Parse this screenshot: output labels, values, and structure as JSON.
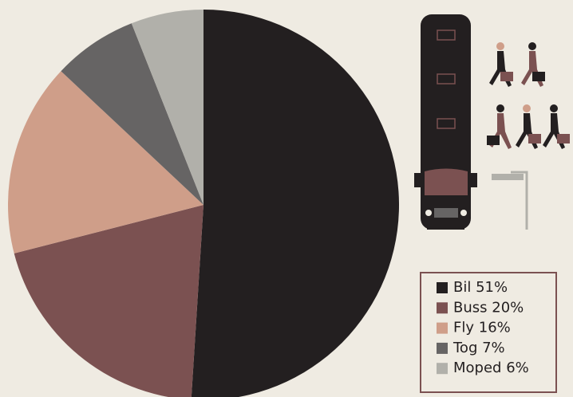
{
  "chart_data": {
    "type": "pie",
    "categories": [
      "Bil",
      "Buss",
      "Fly",
      "Tog",
      "Moped"
    ],
    "values": [
      51,
      20,
      16,
      7,
      6
    ],
    "value_labels": [
      "51%",
      "20%",
      "16%",
      "7%",
      "6%"
    ],
    "colors": [
      "#231f20",
      "#7b5151",
      "#cf9e89",
      "#666464",
      "#b1b0aa"
    ]
  }
}
